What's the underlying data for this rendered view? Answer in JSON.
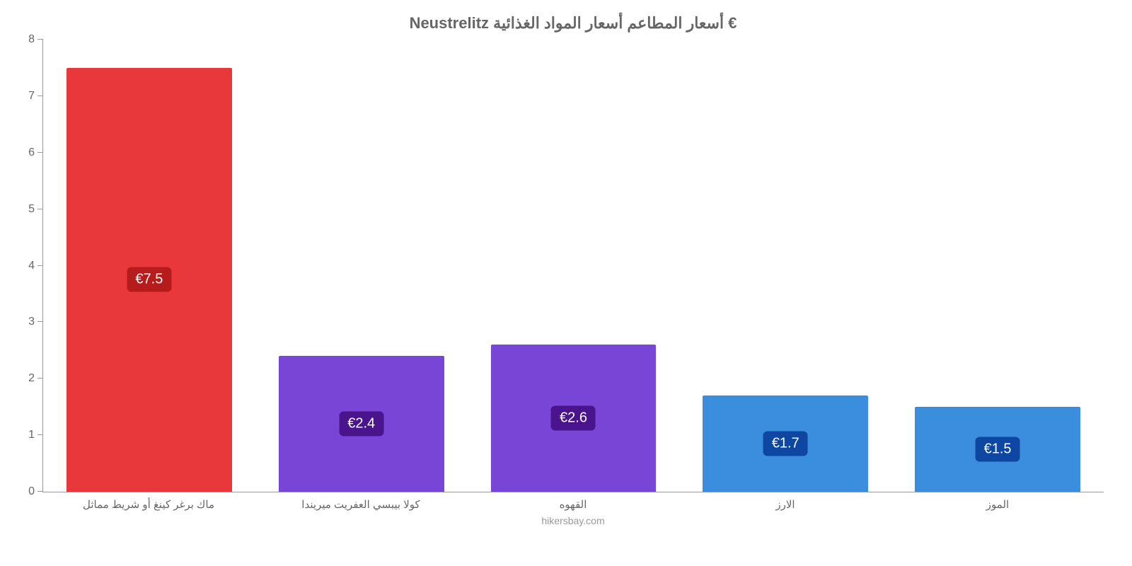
{
  "chart": {
    "type": "bar",
    "title": "€ أسعار المطاعم أسعار المواد الغذائية Neustrelitz",
    "title_fontsize": 22,
    "title_color": "#666666",
    "source": "hikersbay.com",
    "source_color": "#999999",
    "background_color": "#ffffff",
    "axis_color": "#999999",
    "tick_label_color": "#666666",
    "tick_label_fontsize": 16,
    "x_label_fontsize": 15,
    "ylim": [
      0,
      8
    ],
    "ytick_step": 1,
    "yticks": [
      0,
      1,
      2,
      3,
      4,
      5,
      6,
      7,
      8
    ],
    "bar_width_ratio": 0.78,
    "value_label_fontsize": 20,
    "value_label_text_color": "#ffffff",
    "bars": [
      {
        "category": "ماك برغر كينغ أو شريط مماثل",
        "value": 7.5,
        "value_label": "€7.5",
        "bar_color": "#e8383b",
        "label_bg_color": "#b71c1c"
      },
      {
        "category": "كولا بيبسي العفريت ميريندا",
        "value": 2.4,
        "value_label": "€2.4",
        "bar_color": "#7845d6",
        "label_bg_color": "#4a148c"
      },
      {
        "category": "القهوه",
        "value": 2.6,
        "value_label": "€2.6",
        "bar_color": "#7845d6",
        "label_bg_color": "#4a148c"
      },
      {
        "category": "الارز",
        "value": 1.7,
        "value_label": "€1.7",
        "bar_color": "#3b8ede",
        "label_bg_color": "#0d47a1"
      },
      {
        "category": "الموز",
        "value": 1.5,
        "value_label": "€1.5",
        "bar_color": "#3b8ede",
        "label_bg_color": "#0d47a1"
      }
    ]
  }
}
